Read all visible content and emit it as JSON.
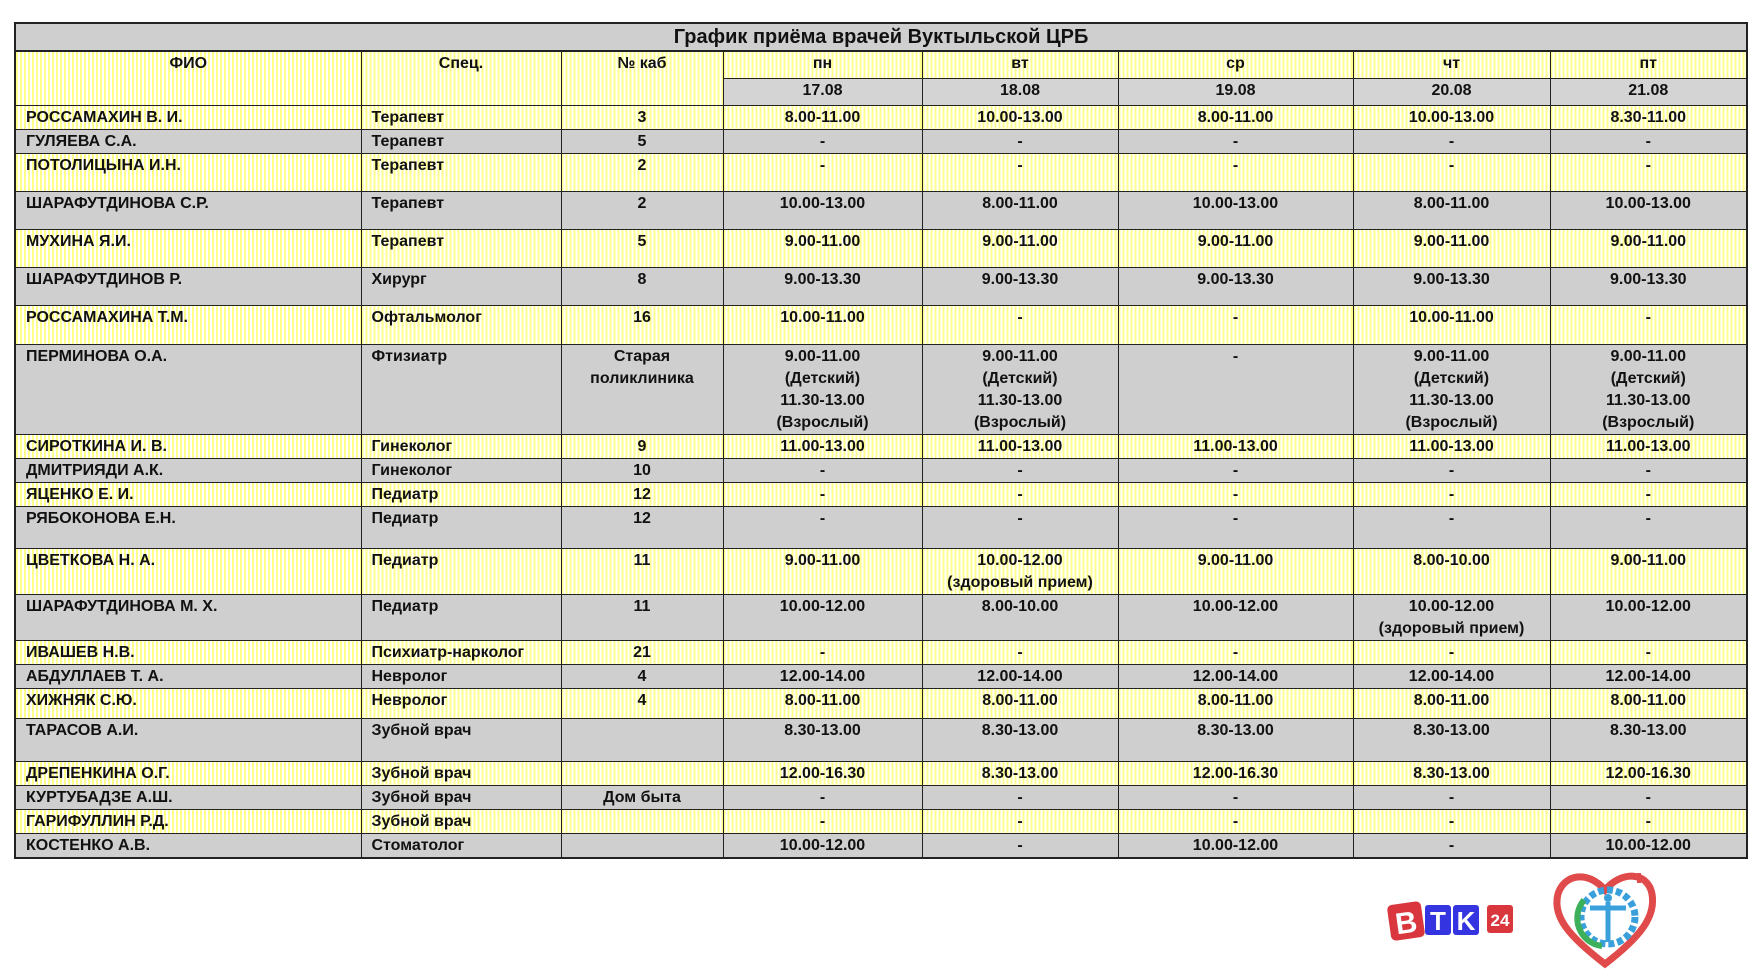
{
  "title": "График приёма врачей Вуктыльской ЦРБ",
  "headers": {
    "name": "ФИО",
    "spec": "Спец.",
    "cab": "№ каб"
  },
  "days": [
    {
      "day": "пн",
      "date": "17.08"
    },
    {
      "day": "вт",
      "date": "18.08"
    },
    {
      "day": "ср",
      "date": "19.08"
    },
    {
      "day": "чт",
      "date": "20.08"
    },
    {
      "day": "пт",
      "date": "21.08"
    }
  ],
  "colors": {
    "yellow": "#ffff8c",
    "gray": "#cfcfcf",
    "border": "#222222"
  },
  "rows": [
    {
      "name": "РОССАМАХИН В. И.",
      "spec": "Терапевт",
      "cab": "3",
      "times": [
        "8.00-11.00",
        "10.00-13.00",
        "8.00-11.00",
        "10.00-13.00",
        "8.30-11.00"
      ],
      "bg": "yellow"
    },
    {
      "name": "ГУЛЯЕВА С.А.",
      "spec": "Терапевт",
      "cab": "5",
      "times": [
        "-",
        "-",
        "-",
        "-",
        "-"
      ],
      "bg": "gray"
    },
    {
      "name": "ПОТОЛИЦЫНА И.Н.",
      "spec": "Терапевт",
      "cab": "2",
      "times": [
        "-",
        "-",
        "-",
        "-",
        "-"
      ],
      "bg": "yellow"
    },
    {
      "name": "ШАРАФУТДИНОВА С.Р.",
      "spec": "Терапевт",
      "cab": "2",
      "times": [
        "10.00-13.00",
        "8.00-11.00",
        "10.00-13.00",
        "8.00-11.00",
        "10.00-13.00"
      ],
      "bg": "gray"
    },
    {
      "name": "МУХИНА Я.И.",
      "spec": "Терапевт",
      "cab": "5",
      "times": [
        "9.00-11.00",
        "9.00-11.00",
        "9.00-11.00",
        "9.00-11.00",
        "9.00-11.00"
      ],
      "bg": "yellow"
    },
    {
      "name": "ШАРАФУТДИНОВ Р.",
      "spec": "Хирург",
      "cab": "8",
      "times": [
        "9.00-13.30",
        "9.00-13.30",
        "9.00-13.30",
        "9.00-13.30",
        "9.00-13.30"
      ],
      "bg": "gray"
    },
    {
      "name": "РОССАМАХИНА Т.М.",
      "spec": "Офтальмолог",
      "cab": "16",
      "times": [
        "10.00-11.00",
        "-",
        "-",
        "10.00-11.00",
        "-"
      ],
      "bg": "yellow"
    },
    {
      "name": "ПЕРМИНОВА О.А.",
      "spec": "Фтизиатр",
      "cab": "Старая\nполиклиника",
      "times": [
        "9.00-11.00\n(Детский)\n11.30-13.00\n(Взрослый)",
        "9.00-11.00\n(Детский)\n11.30-13.00\n(Взрослый)",
        "-",
        "9.00-11.00\n(Детский)\n11.30-13.00\n(Взрослый)",
        "9.00-11.00\n(Детский)\n11.30-13.00\n(Взрослый)"
      ],
      "bg": "gray"
    },
    {
      "name": "СИРОТКИНА И. В.",
      "spec": "Гинеколог",
      "cab": "9",
      "times": [
        "11.00-13.00",
        "11.00-13.00",
        "11.00-13.00",
        "11.00-13.00",
        "11.00-13.00"
      ],
      "bg": "yellow"
    },
    {
      "name": "ДМИТРИЯДИ А.К.",
      "spec": "Гинеколог",
      "cab": "10",
      "times": [
        "-",
        "-",
        "-",
        "-",
        "-"
      ],
      "bg": "gray"
    },
    {
      "name": "ЯЦЕНКО Е. И.",
      "spec": "Педиатр",
      "cab": "12",
      "times": [
        "-",
        "-",
        "-",
        "-",
        "-"
      ],
      "bg": "yellow"
    },
    {
      "name": "РЯБОКОНОВА Е.Н.",
      "spec": "Педиатр",
      "cab": "12",
      "times": [
        "-",
        "-",
        "-",
        "-",
        "-"
      ],
      "bg": "gray"
    },
    {
      "name": "ЦВЕТКОВА Н. А.",
      "spec": "Педиатр",
      "cab": "11",
      "times": [
        "9.00-11.00",
        "10.00-12.00\n(здоровый прием)",
        "9.00-11.00",
        "8.00-10.00",
        "9.00-11.00"
      ],
      "bg": "yellow"
    },
    {
      "name": "ШАРАФУТДИНОВА М. Х.",
      "spec": "Педиатр",
      "cab": "11",
      "times": [
        "10.00-12.00",
        "8.00-10.00",
        "10.00-12.00",
        "10.00-12.00\n(здоровый прием)",
        "10.00-12.00"
      ],
      "bg": "gray"
    },
    {
      "name": "ИВАШЕВ Н.В.",
      "spec": "Психиатр-нарколог",
      "cab": "21",
      "times": [
        "-",
        "-",
        "-",
        "-",
        "-"
      ],
      "bg": "yellow"
    },
    {
      "name": "АБДУЛЛАЕВ Т. А.",
      "spec": "Невролог",
      "cab": "4",
      "times": [
        "12.00-14.00",
        "12.00-14.00",
        "12.00-14.00",
        "12.00-14.00",
        "12.00-14.00"
      ],
      "bg": "gray"
    },
    {
      "name": "ХИЖНЯК С.Ю.",
      "spec": "Невролог",
      "cab": "4",
      "times": [
        "8.00-11.00",
        "8.00-11.00",
        "8.00-11.00",
        "8.00-11.00",
        "8.00-11.00"
      ],
      "bg": "yellow"
    },
    {
      "name": "ТАРАСОВ А.И.",
      "spec": "Зубной врач",
      "cab": "",
      "times": [
        "8.30-13.00",
        "8.30-13.00",
        "8.30-13.00",
        "8.30-13.00",
        "8.30-13.00"
      ],
      "bg": "gray"
    },
    {
      "name": "ДРЕПЕНКИНА О.Г.",
      "spec": "Зубной врач",
      "cab": "",
      "times": [
        "12.00-16.30",
        "8.30-13.00",
        "12.00-16.30",
        "8.30-13.00",
        "12.00-16.30"
      ],
      "bg": "yellow"
    },
    {
      "name": "КУРТУБАДЗЕ А.Ш.",
      "spec": "Зубной врач",
      "cab": "Дом быта",
      "times": [
        "-",
        "-",
        "-",
        "-",
        "-"
      ],
      "bg": "gray"
    },
    {
      "name": "ГАРИФУЛЛИН Р.Д.",
      "spec": "Зубной врач",
      "cab": "",
      "times": [
        "-",
        "-",
        "-",
        "-",
        "-"
      ],
      "bg": "yellow"
    },
    {
      "name": "КОСТЕНКО А.В.",
      "spec": "Стоматолог",
      "cab": "",
      "times": [
        "10.00-12.00",
        "-",
        "10.00-12.00",
        "-",
        "10.00-12.00"
      ],
      "bg": "gray"
    }
  ],
  "logos": {
    "vtk": "ВТК 24",
    "hospital": "heart-medical-emblem"
  }
}
